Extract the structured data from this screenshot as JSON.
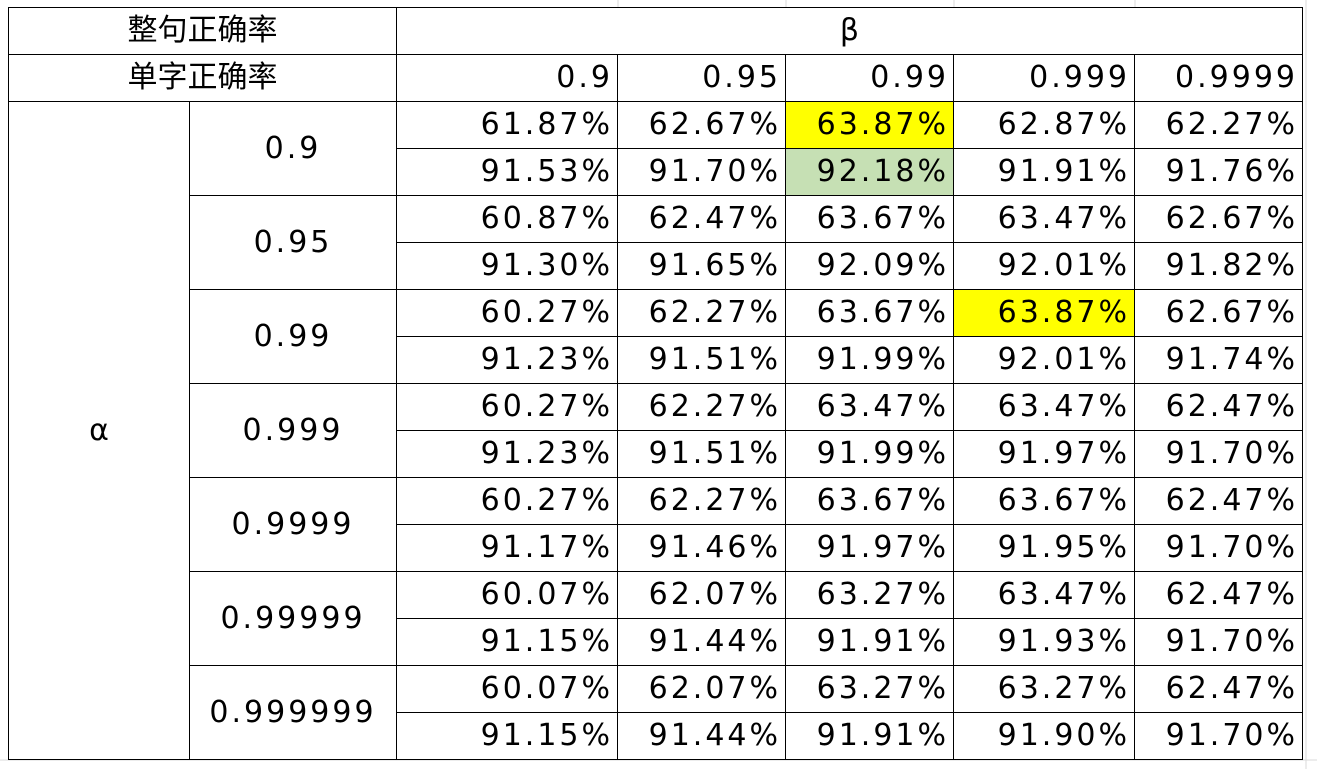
{
  "header": {
    "sentence_accuracy_label": "整句正确率",
    "char_accuracy_label": "单字正确率",
    "beta_label": "β",
    "alpha_label": "α"
  },
  "beta_values": [
    "0.9",
    "0.95",
    "0.99",
    "0.999",
    "0.9999"
  ],
  "alpha_groups": [
    {
      "alpha": "0.9",
      "rows": [
        [
          "61.87%",
          "62.67%",
          "63.87%",
          "62.87%",
          "62.27%"
        ],
        [
          "91.53%",
          "91.70%",
          "92.18%",
          "91.91%",
          "91.76%"
        ]
      ]
    },
    {
      "alpha": "0.95",
      "rows": [
        [
          "60.87%",
          "62.47%",
          "63.67%",
          "63.47%",
          "62.67%"
        ],
        [
          "91.30%",
          "91.65%",
          "92.09%",
          "92.01%",
          "91.82%"
        ]
      ]
    },
    {
      "alpha": "0.99",
      "rows": [
        [
          "60.27%",
          "62.27%",
          "63.67%",
          "63.87%",
          "62.67%"
        ],
        [
          "91.23%",
          "91.51%",
          "91.99%",
          "92.01%",
          "91.74%"
        ]
      ]
    },
    {
      "alpha": "0.999",
      "rows": [
        [
          "60.27%",
          "62.27%",
          "63.47%",
          "63.47%",
          "62.47%"
        ],
        [
          "91.23%",
          "91.51%",
          "91.99%",
          "91.97%",
          "91.70%"
        ]
      ]
    },
    {
      "alpha": "0.9999",
      "rows": [
        [
          "60.27%",
          "62.27%",
          "63.67%",
          "63.67%",
          "62.47%"
        ],
        [
          "91.17%",
          "91.46%",
          "91.97%",
          "91.95%",
          "91.70%"
        ]
      ]
    },
    {
      "alpha": "0.99999",
      "rows": [
        [
          "60.07%",
          "62.07%",
          "63.27%",
          "63.47%",
          "62.47%"
        ],
        [
          "91.15%",
          "91.44%",
          "91.91%",
          "91.93%",
          "91.70%"
        ]
      ]
    },
    {
      "alpha": "0.999999",
      "rows": [
        [
          "60.07%",
          "62.07%",
          "63.27%",
          "63.27%",
          "62.47%"
        ],
        [
          "91.15%",
          "91.44%",
          "91.91%",
          "91.90%",
          "91.70%"
        ]
      ]
    }
  ],
  "highlights": [
    {
      "group": 0,
      "row": 0,
      "col": 2,
      "color": "#ffff00"
    },
    {
      "group": 0,
      "row": 1,
      "col": 2,
      "color": "#c6e0b4"
    },
    {
      "group": 2,
      "row": 0,
      "col": 3,
      "color": "#ffff00"
    }
  ],
  "colors": {
    "highlight_yellow": "#ffff00",
    "highlight_green": "#c6e0b4",
    "gridline": "#d9d9d9",
    "border": "#000000"
  }
}
